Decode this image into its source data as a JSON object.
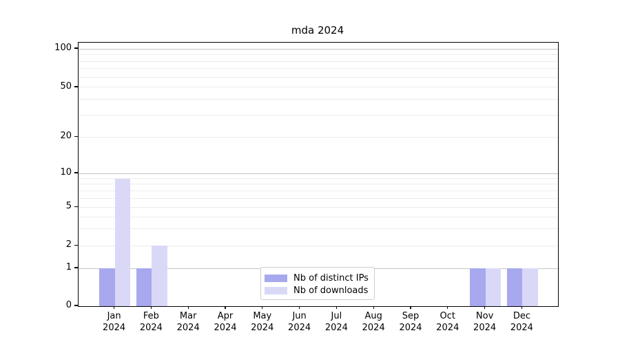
{
  "chart_data": {
    "type": "bar",
    "title": "mda 2024",
    "categories": [
      {
        "month": "Jan",
        "year": "2024"
      },
      {
        "month": "Feb",
        "year": "2024"
      },
      {
        "month": "Mar",
        "year": "2024"
      },
      {
        "month": "Apr",
        "year": "2024"
      },
      {
        "month": "May",
        "year": "2024"
      },
      {
        "month": "Jun",
        "year": "2024"
      },
      {
        "month": "Jul",
        "year": "2024"
      },
      {
        "month": "Aug",
        "year": "2024"
      },
      {
        "month": "Sep",
        "year": "2024"
      },
      {
        "month": "Oct",
        "year": "2024"
      },
      {
        "month": "Nov",
        "year": "2024"
      },
      {
        "month": "Dec",
        "year": "2024"
      }
    ],
    "series": [
      {
        "name": "Nb of distinct IPs",
        "color": "#a8a8ee",
        "values": [
          1,
          1,
          0,
          0,
          0,
          0,
          0,
          0,
          0,
          0,
          1,
          1
        ]
      },
      {
        "name": "Nb of downloads",
        "color": "#d9d9f7",
        "values": [
          9,
          2,
          0,
          0,
          0,
          0,
          0,
          0,
          0,
          0,
          1,
          1
        ]
      }
    ],
    "yaxis": {
      "scale": "log-like with linear zero segment",
      "tick_values": [
        0,
        1,
        2,
        5,
        10,
        20,
        50,
        100
      ],
      "tick_labels": [
        "0",
        "1",
        "2",
        "5",
        "10",
        "20",
        "50",
        "100"
      ],
      "major_grid_values": [
        1,
        10,
        100
      ],
      "minor_grid_values": [
        2,
        3,
        4,
        5,
        6,
        7,
        8,
        9,
        20,
        30,
        40,
        50,
        60,
        70,
        80,
        90
      ]
    },
    "xlabel": "",
    "ylabel": "",
    "grid": true,
    "legend_position": "lower center"
  }
}
